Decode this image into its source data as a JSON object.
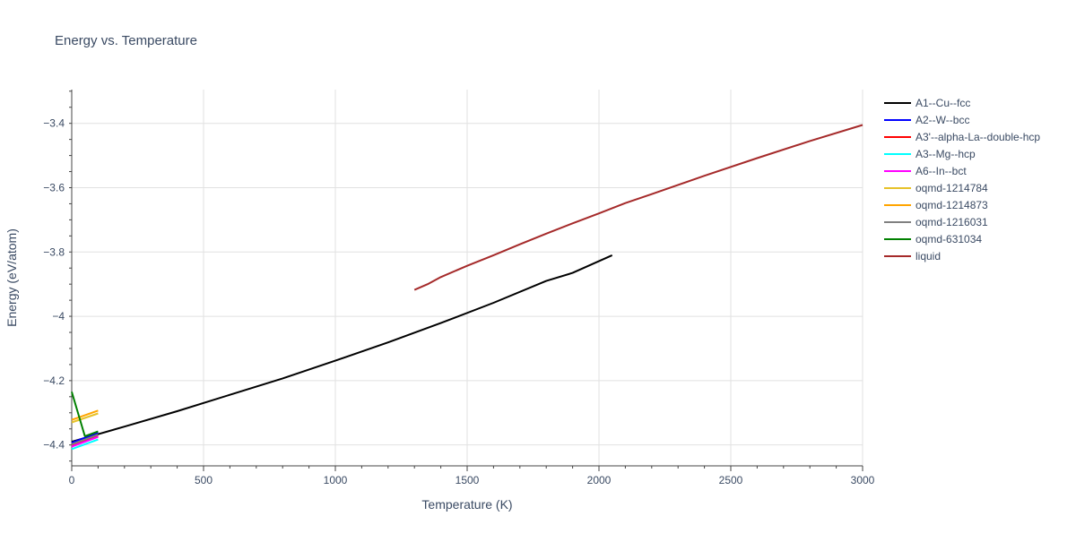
{
  "chart_data": {
    "type": "line",
    "title": "Energy vs. Temperature",
    "xlabel": "Temperature (K)",
    "ylabel": "Energy (eV/atom)",
    "xlim": [
      0,
      3000
    ],
    "ylim": [
      -4.465,
      -3.295
    ],
    "x_ticks": [
      0,
      500,
      1000,
      1500,
      2000,
      2500,
      3000
    ],
    "x_tick_labels": [
      "0",
      "500",
      "1000",
      "1500",
      "2000",
      "2500",
      "3000"
    ],
    "y_ticks": [
      -4.4,
      -4.2,
      -4.0,
      -3.8,
      -3.6,
      -3.4
    ],
    "y_tick_labels": [
      "−4.4",
      "−4.2",
      "−4",
      "−3.8",
      "−3.6",
      "−3.4"
    ],
    "grid": true,
    "legend_position": "right",
    "series": [
      {
        "name": "A1--Cu--fcc",
        "color": "#000000",
        "x": [
          0,
          200,
          400,
          600,
          800,
          1000,
          1200,
          1400,
          1600,
          1800,
          1900,
          2050
        ],
        "y": [
          -4.39,
          -4.343,
          -4.295,
          -4.244,
          -4.193,
          -4.138,
          -4.081,
          -4.021,
          -3.958,
          -3.89,
          -3.865,
          -3.81
        ]
      },
      {
        "name": "A2--W--bcc",
        "color": "#0000ff",
        "x": [
          0,
          100
        ],
        "y": [
          -4.393,
          -4.362
        ]
      },
      {
        "name": "A3'--alpha-La--double-hcp",
        "color": "#ff0000",
        "x": [
          0,
          100
        ],
        "y": [
          -4.402,
          -4.372
        ]
      },
      {
        "name": "A3--Mg--hcp",
        "color": "#00ffff",
        "x": [
          0,
          100
        ],
        "y": [
          -4.413,
          -4.383
        ]
      },
      {
        "name": "A6--In--bct",
        "color": "#ff00ff",
        "x": [
          0,
          100
        ],
        "y": [
          -4.405,
          -4.375
        ]
      },
      {
        "name": "oqmd-1214784",
        "color": "#e6c229",
        "x": [
          0,
          100
        ],
        "y": [
          -4.33,
          -4.302
        ]
      },
      {
        "name": "oqmd-1214873",
        "color": "#ffa500",
        "x": [
          0,
          100
        ],
        "y": [
          -4.322,
          -4.293
        ]
      },
      {
        "name": "oqmd-1216031",
        "color": "#808080",
        "x": [
          0,
          100
        ],
        "y": [
          -4.398,
          -4.368
        ]
      },
      {
        "name": "oqmd-631034",
        "color": "#008000",
        "x": [
          0,
          50,
          100
        ],
        "y": [
          -4.235,
          -4.373,
          -4.358
        ]
      },
      {
        "name": "liquid",
        "color": "#a52a2a",
        "x": [
          1300,
          1350,
          1400,
          1500,
          1600,
          1700,
          1800,
          1900,
          2000,
          2100,
          2200,
          2400,
          2600,
          2800,
          3000
        ],
        "y": [
          -3.918,
          -3.9,
          -3.878,
          -3.843,
          -3.81,
          -3.776,
          -3.743,
          -3.711,
          -3.68,
          -3.648,
          -3.62,
          -3.563,
          -3.508,
          -3.455,
          -3.405
        ]
      }
    ]
  }
}
